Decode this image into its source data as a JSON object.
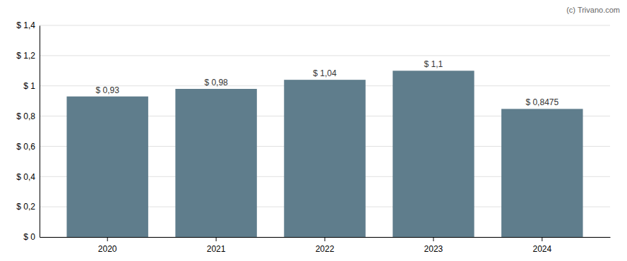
{
  "chart_data": {
    "type": "bar",
    "categories": [
      "2020",
      "2021",
      "2022",
      "2023",
      "2024"
    ],
    "values": [
      0.93,
      0.98,
      1.04,
      1.1,
      0.8475
    ],
    "value_labels": [
      "$ 0,93",
      "$ 0,98",
      "$ 1,04",
      "$ 1,1",
      "$ 0,8475"
    ],
    "data_labels": true,
    "color": "#5f7d8c",
    "ylim": [
      0,
      1.4
    ],
    "yticks": [
      {
        "value": 0,
        "label": "$ 0"
      },
      {
        "value": 0.2,
        "label": "$ 0,2"
      },
      {
        "value": 0.4,
        "label": "$ 0,4"
      },
      {
        "value": 0.6,
        "label": "$ 0,6"
      },
      {
        "value": 0.8,
        "label": "$ 0,8"
      },
      {
        "value": 1.0,
        "label": "$ 1"
      },
      {
        "value": 1.2,
        "label": "$ 1,2"
      },
      {
        "value": 1.4,
        "label": "$ 1,4"
      }
    ],
    "grid": true,
    "annotations": [
      "(c) Trivano.com"
    ]
  }
}
